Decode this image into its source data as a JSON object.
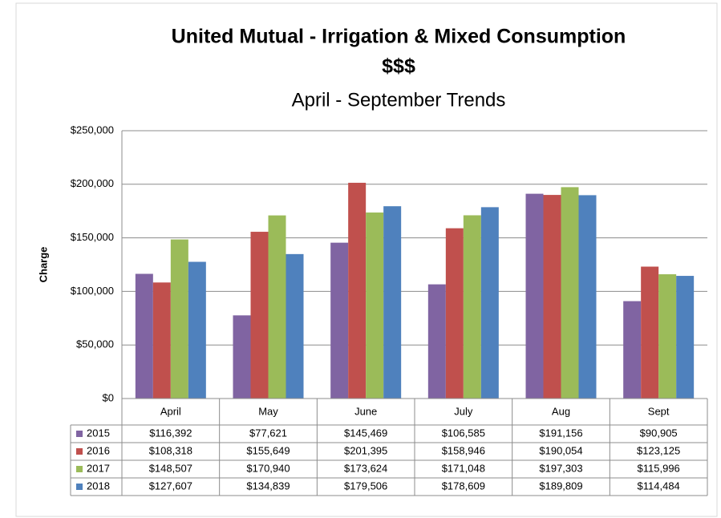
{
  "chart_data": {
    "type": "bar",
    "title": [
      "United Mutual - Irrigation & Mixed Consumption",
      "$$$"
    ],
    "subtitle": "April - September Trends",
    "ylabel": "Charge",
    "categories": [
      "April",
      "May",
      "June",
      "July",
      "Aug",
      "Sept"
    ],
    "series": [
      {
        "name": "2015",
        "color": "#8064a2",
        "values": [
          116392,
          77621,
          145469,
          106585,
          191156,
          90905
        ],
        "value_labels": [
          "$116,392",
          "$77,621",
          "$145,469",
          "$106,585",
          "$191,156",
          "$90,905"
        ]
      },
      {
        "name": "2016",
        "color": "#c0504d",
        "values": [
          108318,
          155649,
          201395,
          158946,
          190054,
          123125
        ],
        "value_labels": [
          "$108,318",
          "$155,649",
          "$201,395",
          "$158,946",
          "$190,054",
          "$123,125"
        ]
      },
      {
        "name": "2017",
        "color": "#9bbb59",
        "values": [
          148507,
          170940,
          173624,
          171048,
          197303,
          115996
        ],
        "value_labels": [
          "$148,507",
          "$170,940",
          "$173,624",
          "$171,048",
          "$197,303",
          "$115,996"
        ]
      },
      {
        "name": "2018",
        "color": "#4f81bd",
        "values": [
          127607,
          134839,
          179506,
          178609,
          189809,
          114484
        ],
        "value_labels": [
          "$127,607",
          "$134,839",
          "$179,506",
          "$178,609",
          "$189,809",
          "$114,484"
        ]
      }
    ],
    "ylim": [
      0,
      250000
    ],
    "yticks": [
      {
        "value": 0,
        "label": "$0"
      },
      {
        "value": 50000,
        "label": "$50,000"
      },
      {
        "value": 100000,
        "label": "$100,000"
      },
      {
        "value": 150000,
        "label": "$150,000"
      },
      {
        "value": 200000,
        "label": "$200,000"
      },
      {
        "value": 250000,
        "label": "$250,000"
      }
    ],
    "grid": true
  }
}
